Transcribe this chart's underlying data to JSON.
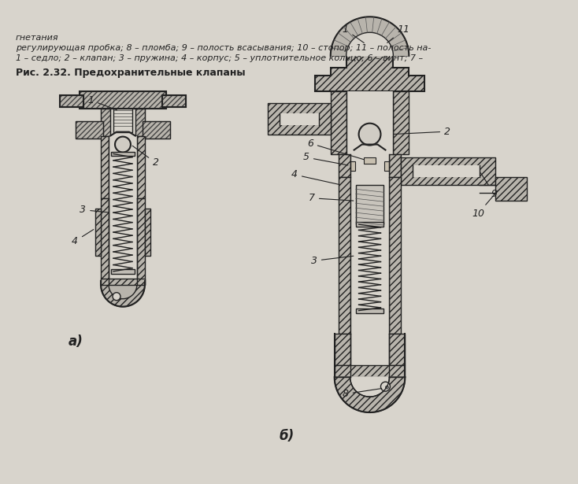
{
  "background_color": "#d8d4cc",
  "title": "Рис. 2.32. Предохранительные клапаны",
  "caption_line1": "1 – седло; 2 – клапан; 3 – пружина; 4 – корпус; 5 – уплотнительное кольцо; 6 – винт; 7 –",
  "caption_line2": "регулирующая пробка; 8 – пломба; 9 – полость всасывания; 10 – стопор; 11 – полость на-",
  "caption_line3": "гнетания",
  "label_a": "а)",
  "label_b": "б)",
  "hatch_color": "#555555",
  "line_color": "#222222",
  "fill_color": "#c8c4bc"
}
